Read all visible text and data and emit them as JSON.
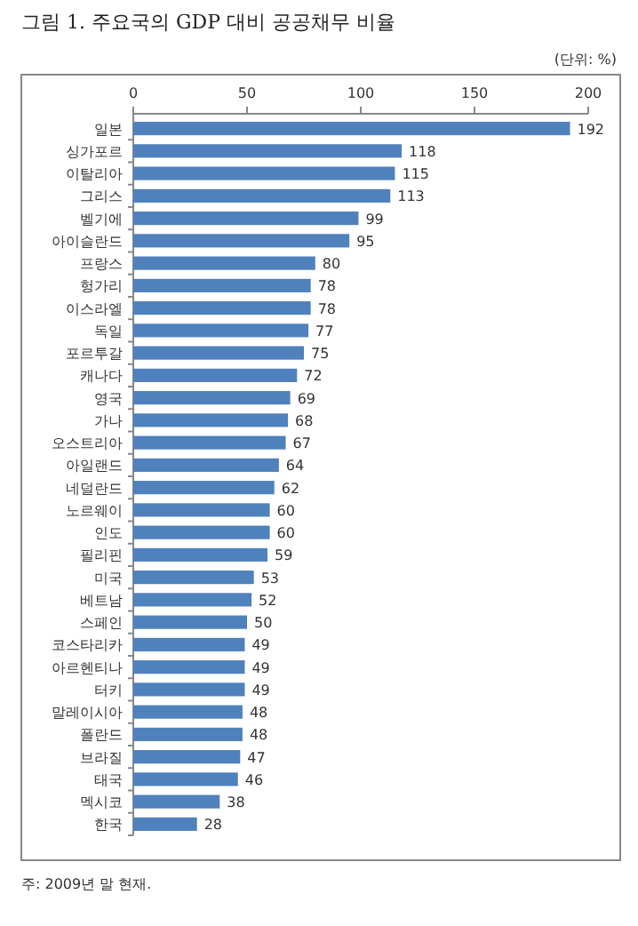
{
  "chart_data": {
    "type": "bar",
    "orientation": "horizontal",
    "title": "그림 1. 주요국의 GDP 대비 공공채무 비율",
    "categories": [
      "일본",
      "싱가포르",
      "이탈리아",
      "그리스",
      "벨기에",
      "아이슬란드",
      "프랑스",
      "헝가리",
      "이스라엘",
      "독일",
      "포르투갈",
      "캐나다",
      "영국",
      "가나",
      "오스트리아",
      "아일랜드",
      "네덜란드",
      "노르웨이",
      "인도",
      "필리핀",
      "미국",
      "베트남",
      "스페인",
      "코스타리카",
      "아르헨티나",
      "터키",
      "말레이시아",
      "폴란드",
      "브라질",
      "태국",
      "멕시코",
      "한국"
    ],
    "values": [
      192,
      118,
      115,
      113,
      99,
      95,
      80,
      78,
      78,
      77,
      75,
      72,
      69,
      68,
      67,
      64,
      62,
      60,
      60,
      59,
      53,
      52,
      50,
      49,
      49,
      49,
      48,
      48,
      47,
      46,
      38,
      28
    ],
    "color": "#4f81bd",
    "xlim": [
      0,
      200
    ],
    "xticks": [
      0,
      50,
      100,
      150,
      200
    ],
    "data_labels": true,
    "annotations": [
      "(단위: %)",
      "주: 2009년 말 현재."
    ]
  }
}
